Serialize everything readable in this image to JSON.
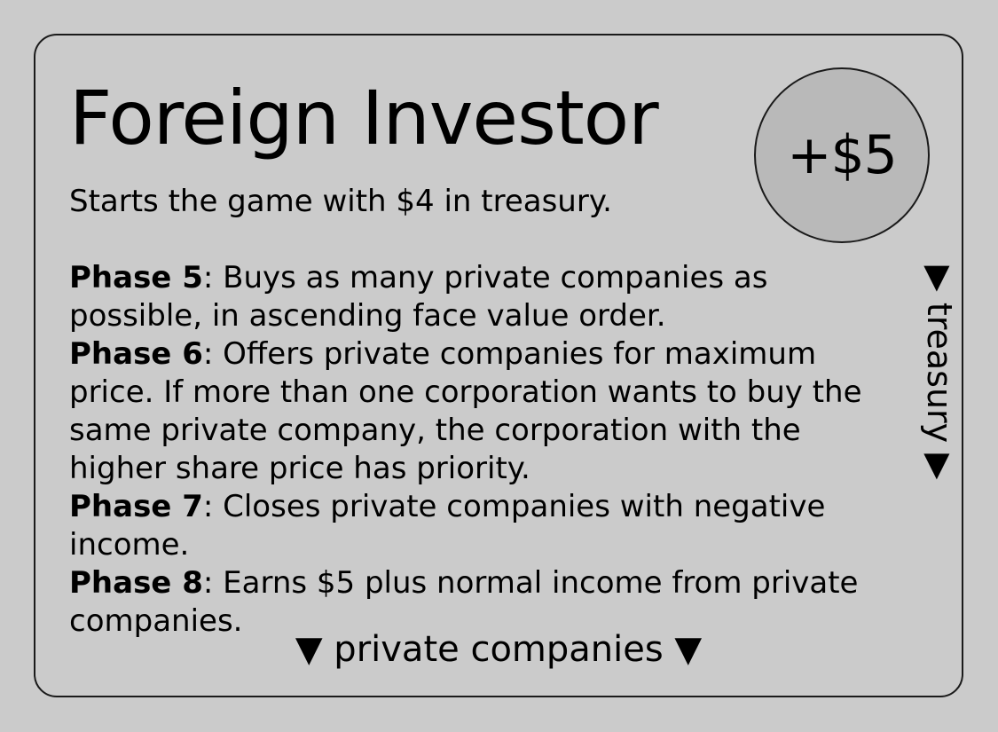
{
  "card": {
    "title": "Foreign Investor",
    "badge": "+$5",
    "intro": "Starts the game with $4 in treasury.",
    "phases": [
      {
        "name": "Phase 5",
        "lines": [
          ": Buys as many private companies as",
          "possible, in ascending face value order."
        ]
      },
      {
        "name": "Phase 6",
        "lines": [
          ": Offers private companies for maximum",
          "price. If more than one corporation wants to buy the",
          "same private company, the corporation with the",
          "higher share price has priority."
        ]
      },
      {
        "name": "Phase 7",
        "lines": [
          ": Closes private companies with negative",
          "income."
        ]
      },
      {
        "name": "Phase 8",
        "lines": [
          ": Earns $5 plus normal income from private",
          "companies."
        ]
      }
    ],
    "side_label": "▶ treasury ▶",
    "bottom_label": "▼ private companies ▼"
  }
}
